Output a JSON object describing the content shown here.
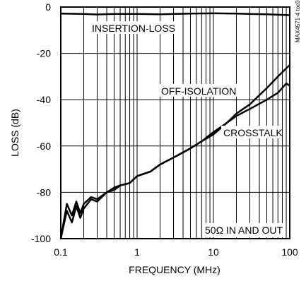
{
  "chart_data": {
    "type": "line",
    "title": "",
    "xlabel": "FREQUENCY (MHz)",
    "ylabel": "LOSS (dB)",
    "x_scale": "log",
    "xlim": [
      0.1,
      100
    ],
    "ylim": [
      -100,
      0
    ],
    "x_ticks": [
      "0.1",
      "1",
      "10",
      "100"
    ],
    "y_ticks": [
      "0",
      "-20",
      "-40",
      "-60",
      "-80",
      "-100"
    ],
    "grid": true,
    "annotations": [
      "INSERTION-LOSS",
      "OFF-ISOLATION",
      "CROSSTALK",
      "50Ω IN AND OUT"
    ],
    "side_label": "MAX4571-4 toc09",
    "series": [
      {
        "label": "INSERTION-LOSS",
        "x": [
          0.1,
          0.2,
          0.3,
          0.5,
          1,
          2,
          3,
          5,
          10,
          20,
          30,
          50,
          100
        ],
        "y": [
          -2.8,
          -3.0,
          -3.2,
          -3.0,
          -3.0,
          -3.1,
          -3.0,
          -2.8,
          -2.7,
          -2.8,
          -3.0,
          -3.1,
          -3.5
        ]
      },
      {
        "label": "OFF-ISOLATION",
        "x": [
          0.1,
          0.12,
          0.14,
          0.16,
          0.18,
          0.2,
          0.25,
          0.3,
          0.4,
          0.5,
          0.6,
          0.8,
          1,
          1.5,
          2,
          3,
          5,
          7,
          10,
          15,
          20,
          30,
          50,
          70,
          100
        ],
        "y": [
          -100,
          -85,
          -90,
          -84,
          -89,
          -85,
          -82,
          -83,
          -80,
          -78,
          -77,
          -76,
          -73,
          -71,
          -68,
          -65,
          -61,
          -58,
          -55,
          -50,
          -46,
          -42,
          -35,
          -30,
          -25
        ]
      },
      {
        "label": "CROSSTALK",
        "x": [
          0.1,
          0.12,
          0.14,
          0.16,
          0.18,
          0.2,
          0.25,
          0.3,
          0.4,
          0.5,
          0.6,
          0.8,
          1,
          1.5,
          2,
          3,
          5,
          7,
          10,
          15,
          20,
          30,
          50,
          70,
          90,
          100
        ],
        "y": [
          -100,
          -88,
          -93,
          -86,
          -91,
          -87,
          -83,
          -84,
          -80,
          -79,
          -77,
          -76,
          -73,
          -71,
          -68,
          -65,
          -61,
          -58,
          -54,
          -50,
          -47,
          -44,
          -40,
          -37,
          -33,
          -34
        ]
      }
    ]
  }
}
